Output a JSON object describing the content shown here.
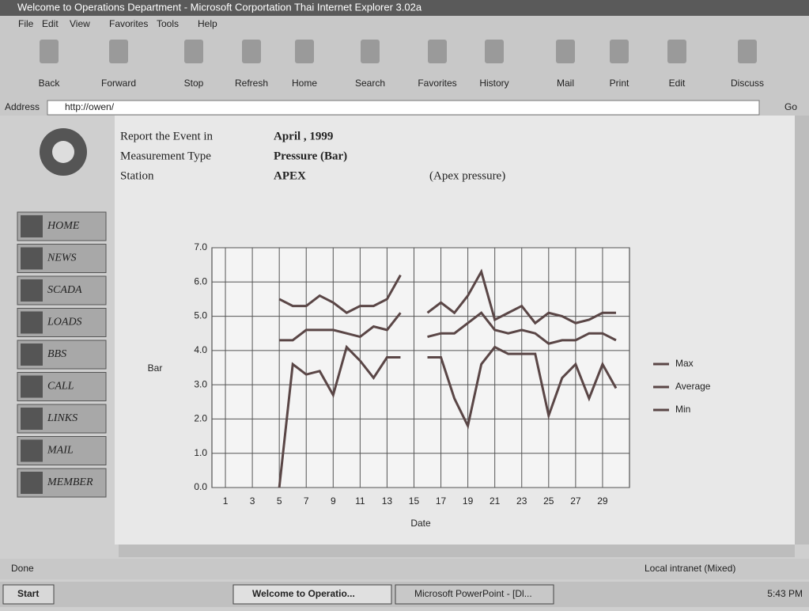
{
  "window": {
    "title": "Welcome to Operations Department - Microsoft Corportation Thai Internet Explorer 3.02a"
  },
  "menu": [
    "File",
    "Edit",
    "View",
    "Favorites",
    "Tools",
    "Help"
  ],
  "toolbar": [
    "Back",
    "Forward",
    "Stop",
    "Refresh",
    "Home",
    "Search",
    "Favorites",
    "History",
    "Mail",
    "Print",
    "Edit",
    "Discuss"
  ],
  "address": {
    "label": "Address",
    "url": "http://owen/",
    "go": "Go"
  },
  "sidebar": [
    "HOME",
    "NEWS",
    "SCADA",
    "LOADS",
    "BBS",
    "CALL",
    "LINKS",
    "MAIL",
    "MEMBER"
  ],
  "report": {
    "rows": [
      [
        "Report the Event in",
        "April , 1999"
      ],
      [
        "Measurement Type",
        "Pressure (Bar)"
      ],
      [
        "Station",
        "APEX"
      ]
    ],
    "station_note": "(Apex pressure)"
  },
  "chart_data": {
    "type": "line",
    "y_label": "Bar",
    "x_label": "Date",
    "x": [
      1,
      2,
      3,
      4,
      5,
      6,
      7,
      8,
      9,
      10,
      11,
      12,
      13,
      14,
      15,
      16,
      17,
      18,
      19,
      20,
      21,
      22,
      23,
      24,
      25,
      26,
      27,
      28,
      29,
      30
    ],
    "series": [
      {
        "name": "Max",
        "color": "#5a4646",
        "values": [
          null,
          null,
          null,
          null,
          5.5,
          5.3,
          5.3,
          5.6,
          5.4,
          5.1,
          5.3,
          5.3,
          5.5,
          6.2,
          null,
          5.1,
          5.4,
          5.1,
          5.6,
          6.3,
          4.9,
          5.1,
          5.3,
          4.8,
          5.1,
          5.0,
          4.8,
          4.9,
          5.1,
          5.1
        ]
      },
      {
        "name": "Average",
        "color": "#5a4646",
        "values": [
          null,
          null,
          null,
          null,
          4.3,
          4.3,
          4.6,
          4.6,
          4.6,
          4.5,
          4.4,
          4.7,
          4.6,
          5.1,
          null,
          4.4,
          4.5,
          4.5,
          4.8,
          5.1,
          4.6,
          4.5,
          4.6,
          4.5,
          4.2,
          4.3,
          4.3,
          4.5,
          4.5,
          4.3
        ]
      },
      {
        "name": "Min",
        "color": "#5a4646",
        "values": [
          null,
          null,
          null,
          null,
          0.0,
          3.6,
          3.3,
          3.4,
          2.7,
          4.1,
          3.7,
          3.2,
          3.8,
          3.8,
          null,
          3.8,
          3.8,
          2.6,
          1.8,
          3.6,
          4.1,
          3.9,
          3.9,
          3.9,
          2.1,
          3.2,
          3.6,
          2.6,
          3.6,
          2.9
        ]
      }
    ],
    "xlim": [
      0,
      31
    ],
    "xticks": [
      1,
      3,
      5,
      7,
      9,
      11,
      13,
      15,
      17,
      19,
      21,
      23,
      25,
      27,
      29
    ],
    "ylim": [
      0,
      7
    ],
    "yticks": [
      {
        "value": 0,
        "label": "0.0"
      },
      {
        "value": 1,
        "label": "1.0"
      },
      {
        "value": 2,
        "label": "2.0"
      },
      {
        "value": 3,
        "label": "3.0"
      },
      {
        "value": 4,
        "label": "4.0"
      },
      {
        "value": 5,
        "label": "5.0"
      },
      {
        "value": 6,
        "label": "6.0"
      },
      {
        "value": 7,
        "label": "7.0"
      }
    ],
    "grid": true,
    "legend": "right"
  },
  "status": {
    "text": "Done",
    "zone": "Local intranet (Mixed)"
  },
  "taskbar": {
    "start": "Start",
    "tasks": [
      "Welcome to Operatio...",
      "Microsoft PowerPoint - [Dl..."
    ],
    "clock": "5:43 PM"
  }
}
